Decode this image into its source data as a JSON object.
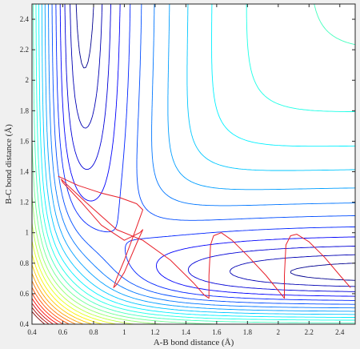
{
  "chart_data": {
    "type": "contour",
    "title": "",
    "xlabel": "A-B bond distance (Å)",
    "ylabel": "B-C bond distance (Å)",
    "xlim": [
      0.4,
      2.5
    ],
    "ylim": [
      0.4,
      2.5
    ],
    "xticks": [
      "0.4",
      "0.6",
      "0.8",
      "1",
      "1.2",
      "1.4",
      "1.6",
      "1.8",
      "2",
      "2.2",
      "2.4"
    ],
    "yticks": [
      "0.4",
      "0.6",
      "0.8",
      "1",
      "1.2",
      "1.4",
      "1.6",
      "1.8",
      "2",
      "2.2",
      "2.4"
    ],
    "grid": false,
    "legend": "none",
    "contour_colormap": [
      "#00008f",
      "#0000ff",
      "#0080ff",
      "#00ffff",
      "#80ff80",
      "#ffff00",
      "#ff8000",
      "#ff0000",
      "#800000"
    ],
    "trajectory_color": "#e8202a",
    "trajectory": [
      [
        0.57,
        1.37
      ],
      [
        0.7,
        1.31
      ],
      [
        0.85,
        1.26
      ],
      [
        0.97,
        1.23
      ],
      [
        1.08,
        1.19
      ],
      [
        1.12,
        1.15
      ],
      [
        1.07,
        1.01
      ],
      [
        1.0,
        0.82
      ],
      [
        0.95,
        0.7
      ],
      [
        0.93,
        0.64
      ],
      [
        0.95,
        0.66
      ],
      [
        1.0,
        0.74
      ],
      [
        1.08,
        0.93
      ],
      [
        1.12,
        1.02
      ],
      [
        1.1,
        1.0
      ],
      [
        1.0,
        0.95
      ],
      [
        0.85,
        1.05
      ],
      [
        0.72,
        1.2
      ],
      [
        0.6,
        1.33
      ],
      [
        0.59,
        1.35
      ],
      [
        0.75,
        1.2
      ],
      [
        0.95,
        1.02
      ],
      [
        1.12,
        0.95
      ],
      [
        1.3,
        0.82
      ],
      [
        1.45,
        0.67
      ],
      [
        1.52,
        0.59
      ],
      [
        1.55,
        0.57
      ],
      [
        1.55,
        0.72
      ],
      [
        1.56,
        0.92
      ],
      [
        1.58,
        0.98
      ],
      [
        1.63,
        1.0
      ],
      [
        1.7,
        0.95
      ],
      [
        1.8,
        0.85
      ],
      [
        1.92,
        0.72
      ],
      [
        2.0,
        0.62
      ],
      [
        2.04,
        0.57
      ],
      [
        2.04,
        0.72
      ],
      [
        2.05,
        0.92
      ],
      [
        2.08,
        0.98
      ],
      [
        2.12,
        0.99
      ],
      [
        2.2,
        0.94
      ],
      [
        2.3,
        0.84
      ],
      [
        2.4,
        0.72
      ],
      [
        2.47,
        0.64
      ]
    ]
  }
}
